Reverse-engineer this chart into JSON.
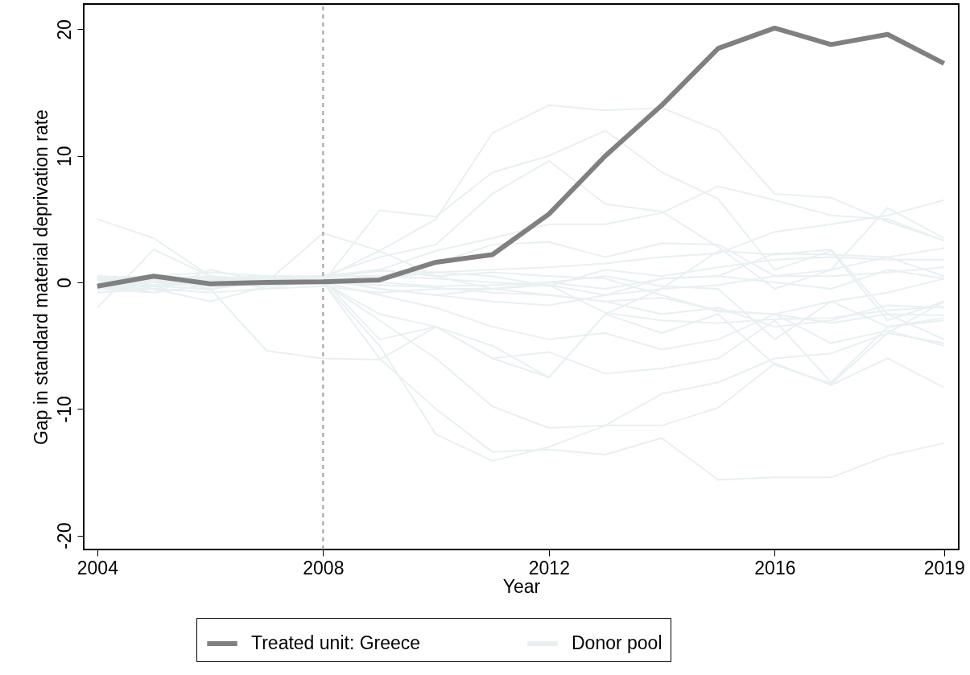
{
  "chart_data": {
    "type": "line",
    "xlabel": "Year",
    "ylabel": "Gap in standard material deprivation rate",
    "x": [
      2004,
      2005,
      2006,
      2007,
      2008,
      2009,
      2010,
      2011,
      2012,
      2013,
      2014,
      2015,
      2016,
      2017,
      2018,
      2019
    ],
    "xlim": [
      2003.76,
      2019.26
    ],
    "xticks": [
      2004,
      2008,
      2012,
      2016,
      2019
    ],
    "ylim": [
      -21.1,
      22
    ],
    "yticks": [
      -20,
      -10,
      0,
      10,
      20
    ],
    "grid": false,
    "legend": "bottom",
    "line_style": "solid",
    "ref_lines": [
      {
        "axis": "x",
        "value": 2008,
        "color": "#a0a0a0",
        "line_style": "dashed"
      }
    ],
    "series": [
      {
        "name": "Donor pool",
        "color": "#e8f0f2",
        "values": [
          0.3,
          0,
          -0.3,
          0.2,
          0.3,
          2.5,
          5,
          11.8,
          14,
          13.6,
          13.8,
          12,
          7,
          6.7,
          4.8,
          3.3
        ]
      },
      {
        "color": "#e8f0f2",
        "values": [
          -0.5,
          -0.3,
          0,
          0.3,
          0,
          5.7,
          5.2,
          8.7,
          10,
          12,
          8.7,
          6.6,
          1,
          2.5,
          -3,
          -1.5
        ]
      },
      {
        "color": "#e8f0f2",
        "values": [
          0.2,
          0.5,
          0.8,
          0.5,
          0.5,
          2,
          3,
          7,
          9.6,
          6.2,
          5.6,
          2.8,
          -0.5,
          1,
          2,
          0.5
        ]
      },
      {
        "color": "#e8f0f2",
        "values": [
          5,
          3.5,
          0.5,
          -0.5,
          0.3,
          -0.5,
          -1,
          -0.5,
          -0.2,
          -1,
          0.3,
          0.5,
          0,
          -0.5,
          1,
          0.3
        ]
      },
      {
        "color": "#e8f0f2",
        "values": [
          0.3,
          0.2,
          0.5,
          0,
          3.9,
          2.5,
          0.5,
          -0.5,
          -1,
          -1.5,
          -2.5,
          -2,
          -3.5,
          -3,
          -1.8,
          -2
        ]
      },
      {
        "color": "#e8f0f2",
        "values": [
          0.5,
          0.3,
          -0.5,
          -5.4,
          -6,
          -6.1,
          -3.5,
          -6,
          -7.5,
          -2.5,
          -0.5,
          2.5,
          2.2,
          2.6,
          -2.5,
          -4.5
        ]
      },
      {
        "color": "#e8f0f2",
        "values": [
          -0.5,
          -0.2,
          0.3,
          0.2,
          0,
          -5,
          -12,
          -14.1,
          -13,
          -11.3,
          -8.8,
          -7.9,
          -6,
          -5.6,
          -4,
          -1.5
        ]
      },
      {
        "color": "#e8f0f2",
        "values": [
          0,
          -0.3,
          -0.5,
          0,
          0,
          -6,
          -10,
          -13.4,
          -13.2,
          -13.6,
          -12.3,
          -15.6,
          -15.4,
          -15.4,
          -13.7,
          -12.7
        ]
      },
      {
        "color": "#e8f0f2",
        "values": [
          -0.3,
          0,
          0.2,
          0.3,
          0,
          -3,
          -6,
          -9.8,
          -11.5,
          -11.3,
          -11.3,
          -9.9,
          -6.4,
          -8.1,
          -6,
          -8.3
        ]
      },
      {
        "color": "#e8f0f2",
        "values": [
          -2,
          2.6,
          0.5,
          0.2,
          0,
          -2.5,
          -3.5,
          -6,
          -5.5,
          -7.2,
          -6.8,
          -6,
          -3,
          -7.9,
          -3.5,
          -3
        ]
      },
      {
        "color": "#e8f0f2",
        "values": [
          0.2,
          -0.5,
          -1.5,
          -0.3,
          0.2,
          -4.5,
          -3.5,
          -5,
          -7.5,
          -2.5,
          -4,
          -2.5,
          -6.5,
          -8,
          -4,
          -4.8
        ]
      },
      {
        "color": "#e8f0f2",
        "values": [
          0,
          -0.8,
          1,
          0,
          0.5,
          1,
          2.5,
          3.5,
          4.6,
          4.6,
          5.5,
          7.6,
          6.5,
          5.3,
          5,
          3.3
        ]
      },
      {
        "color": "#e8f0f2",
        "values": [
          0.3,
          0.2,
          0,
          0.3,
          0.2,
          0.5,
          1.5,
          3,
          3.2,
          2,
          3.1,
          3,
          0.5,
          1,
          5.9,
          3.5
        ]
      },
      {
        "color": "#e8f0f2",
        "values": [
          -0.5,
          -0.8,
          -0.2,
          0.2,
          0,
          -1,
          -2,
          -3.5,
          -4.5,
          -4,
          -5.3,
          -4.5,
          -2.5,
          -4.8,
          -3.8,
          -5
        ]
      },
      {
        "color": "#e8f0f2",
        "values": [
          0.5,
          0.3,
          0.5,
          0.2,
          0.3,
          1,
          0.5,
          0.8,
          0.5,
          0.3,
          -1,
          -2.3,
          -2.5,
          -3.2,
          -2.5,
          -2.6
        ]
      },
      {
        "color": "#e8f0f2",
        "values": [
          0,
          0.2,
          -0.3,
          -0.2,
          0,
          0.3,
          0.8,
          0.5,
          -0.3,
          1,
          0.5,
          1.2,
          1.8,
          2,
          1.8,
          1.8
        ]
      },
      {
        "color": "#e8f0f2",
        "values": [
          -0.8,
          -0.5,
          -0.8,
          -0.5,
          -0.3,
          -0.8,
          -0.5,
          -0.5,
          0,
          -0.5,
          0.3,
          0.5,
          2.3,
          2.2,
          2,
          2.7
        ]
      },
      {
        "color": "#e8f0f2",
        "values": [
          0.2,
          0,
          0.3,
          0.5,
          0.2,
          -0.5,
          -1,
          -1.5,
          -1.8,
          -1,
          -0.5,
          -0.2,
          0.5,
          0.5,
          0.8,
          1.2
        ]
      },
      {
        "color": "#e8f0f2",
        "values": [
          -0.3,
          -0.3,
          0.2,
          0,
          0,
          -0.2,
          -0.4,
          -0.8,
          -1,
          -1.5,
          -1.2,
          -2.2,
          -2.5,
          -1.5,
          -0.8,
          0.3
        ]
      },
      {
        "color": "#e8f0f2",
        "values": [
          0.4,
          0.5,
          0.3,
          0.3,
          0.5,
          0.5,
          0.3,
          0,
          -0.2,
          -2.4,
          -3,
          -3.2,
          -2.9,
          -2.8,
          -2.2,
          -1.9
        ]
      },
      {
        "color": "#e8f0f2",
        "values": [
          0.3,
          -0.2,
          -0.6,
          0.5,
          0.4,
          0.9,
          0.8,
          1,
          1.2,
          1.5,
          2,
          2.3,
          4,
          4.6,
          5.3,
          6.5
        ]
      },
      {
        "color": "#e8f0f2",
        "values": [
          -0.5,
          -0.5,
          0.3,
          0.3,
          0.2,
          0,
          -0.3,
          -0.2,
          0,
          0.5,
          -0.3,
          -0.5,
          -4.5,
          -1.5,
          -3.5,
          -2.8
        ]
      },
      {
        "name": "Treated unit: Greece",
        "color": "#808080",
        "values": [
          -0.3,
          0.5,
          -0.1,
          0,
          0.05,
          0.2,
          1.6,
          2.2,
          5.4,
          10,
          14,
          18.5,
          20.1,
          18.8,
          19.6,
          17.3
        ]
      }
    ]
  }
}
